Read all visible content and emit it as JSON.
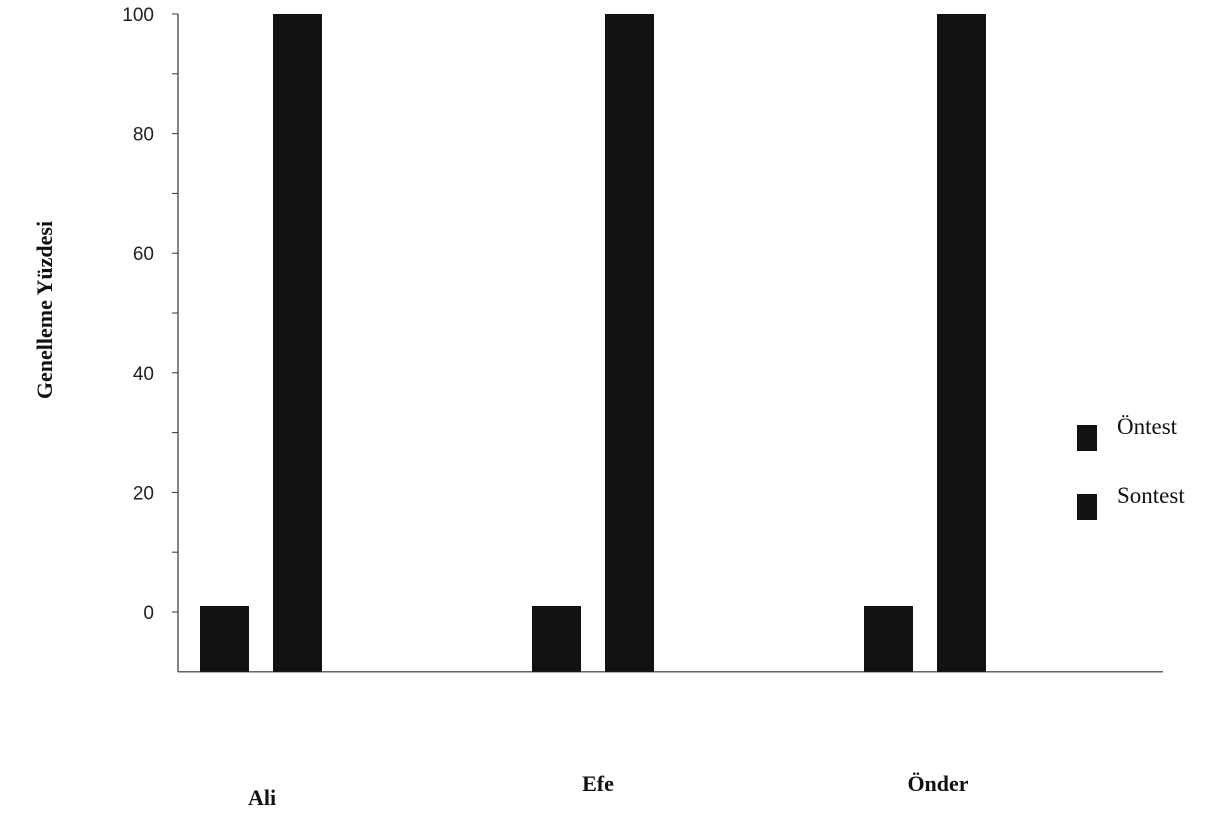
{
  "chart_data": {
    "type": "bar",
    "title": "",
    "xlabel": "",
    "ylabel": "Genelleme Yüzdesi",
    "categories": [
      "Ali",
      "Efe",
      "Önder"
    ],
    "series": [
      {
        "name": "Öntest",
        "values": [
          0,
          0,
          0
        ]
      },
      {
        "name": "Sontest",
        "values": [
          100,
          100,
          100
        ]
      }
    ],
    "ylim": [
      -10,
      100
    ],
    "yticks": [
      0,
      20,
      40,
      60,
      80,
      100
    ],
    "grid": false,
    "legend_position": "right",
    "colors": {
      "Öntest": "#111111",
      "Sontest": "#111111"
    }
  }
}
